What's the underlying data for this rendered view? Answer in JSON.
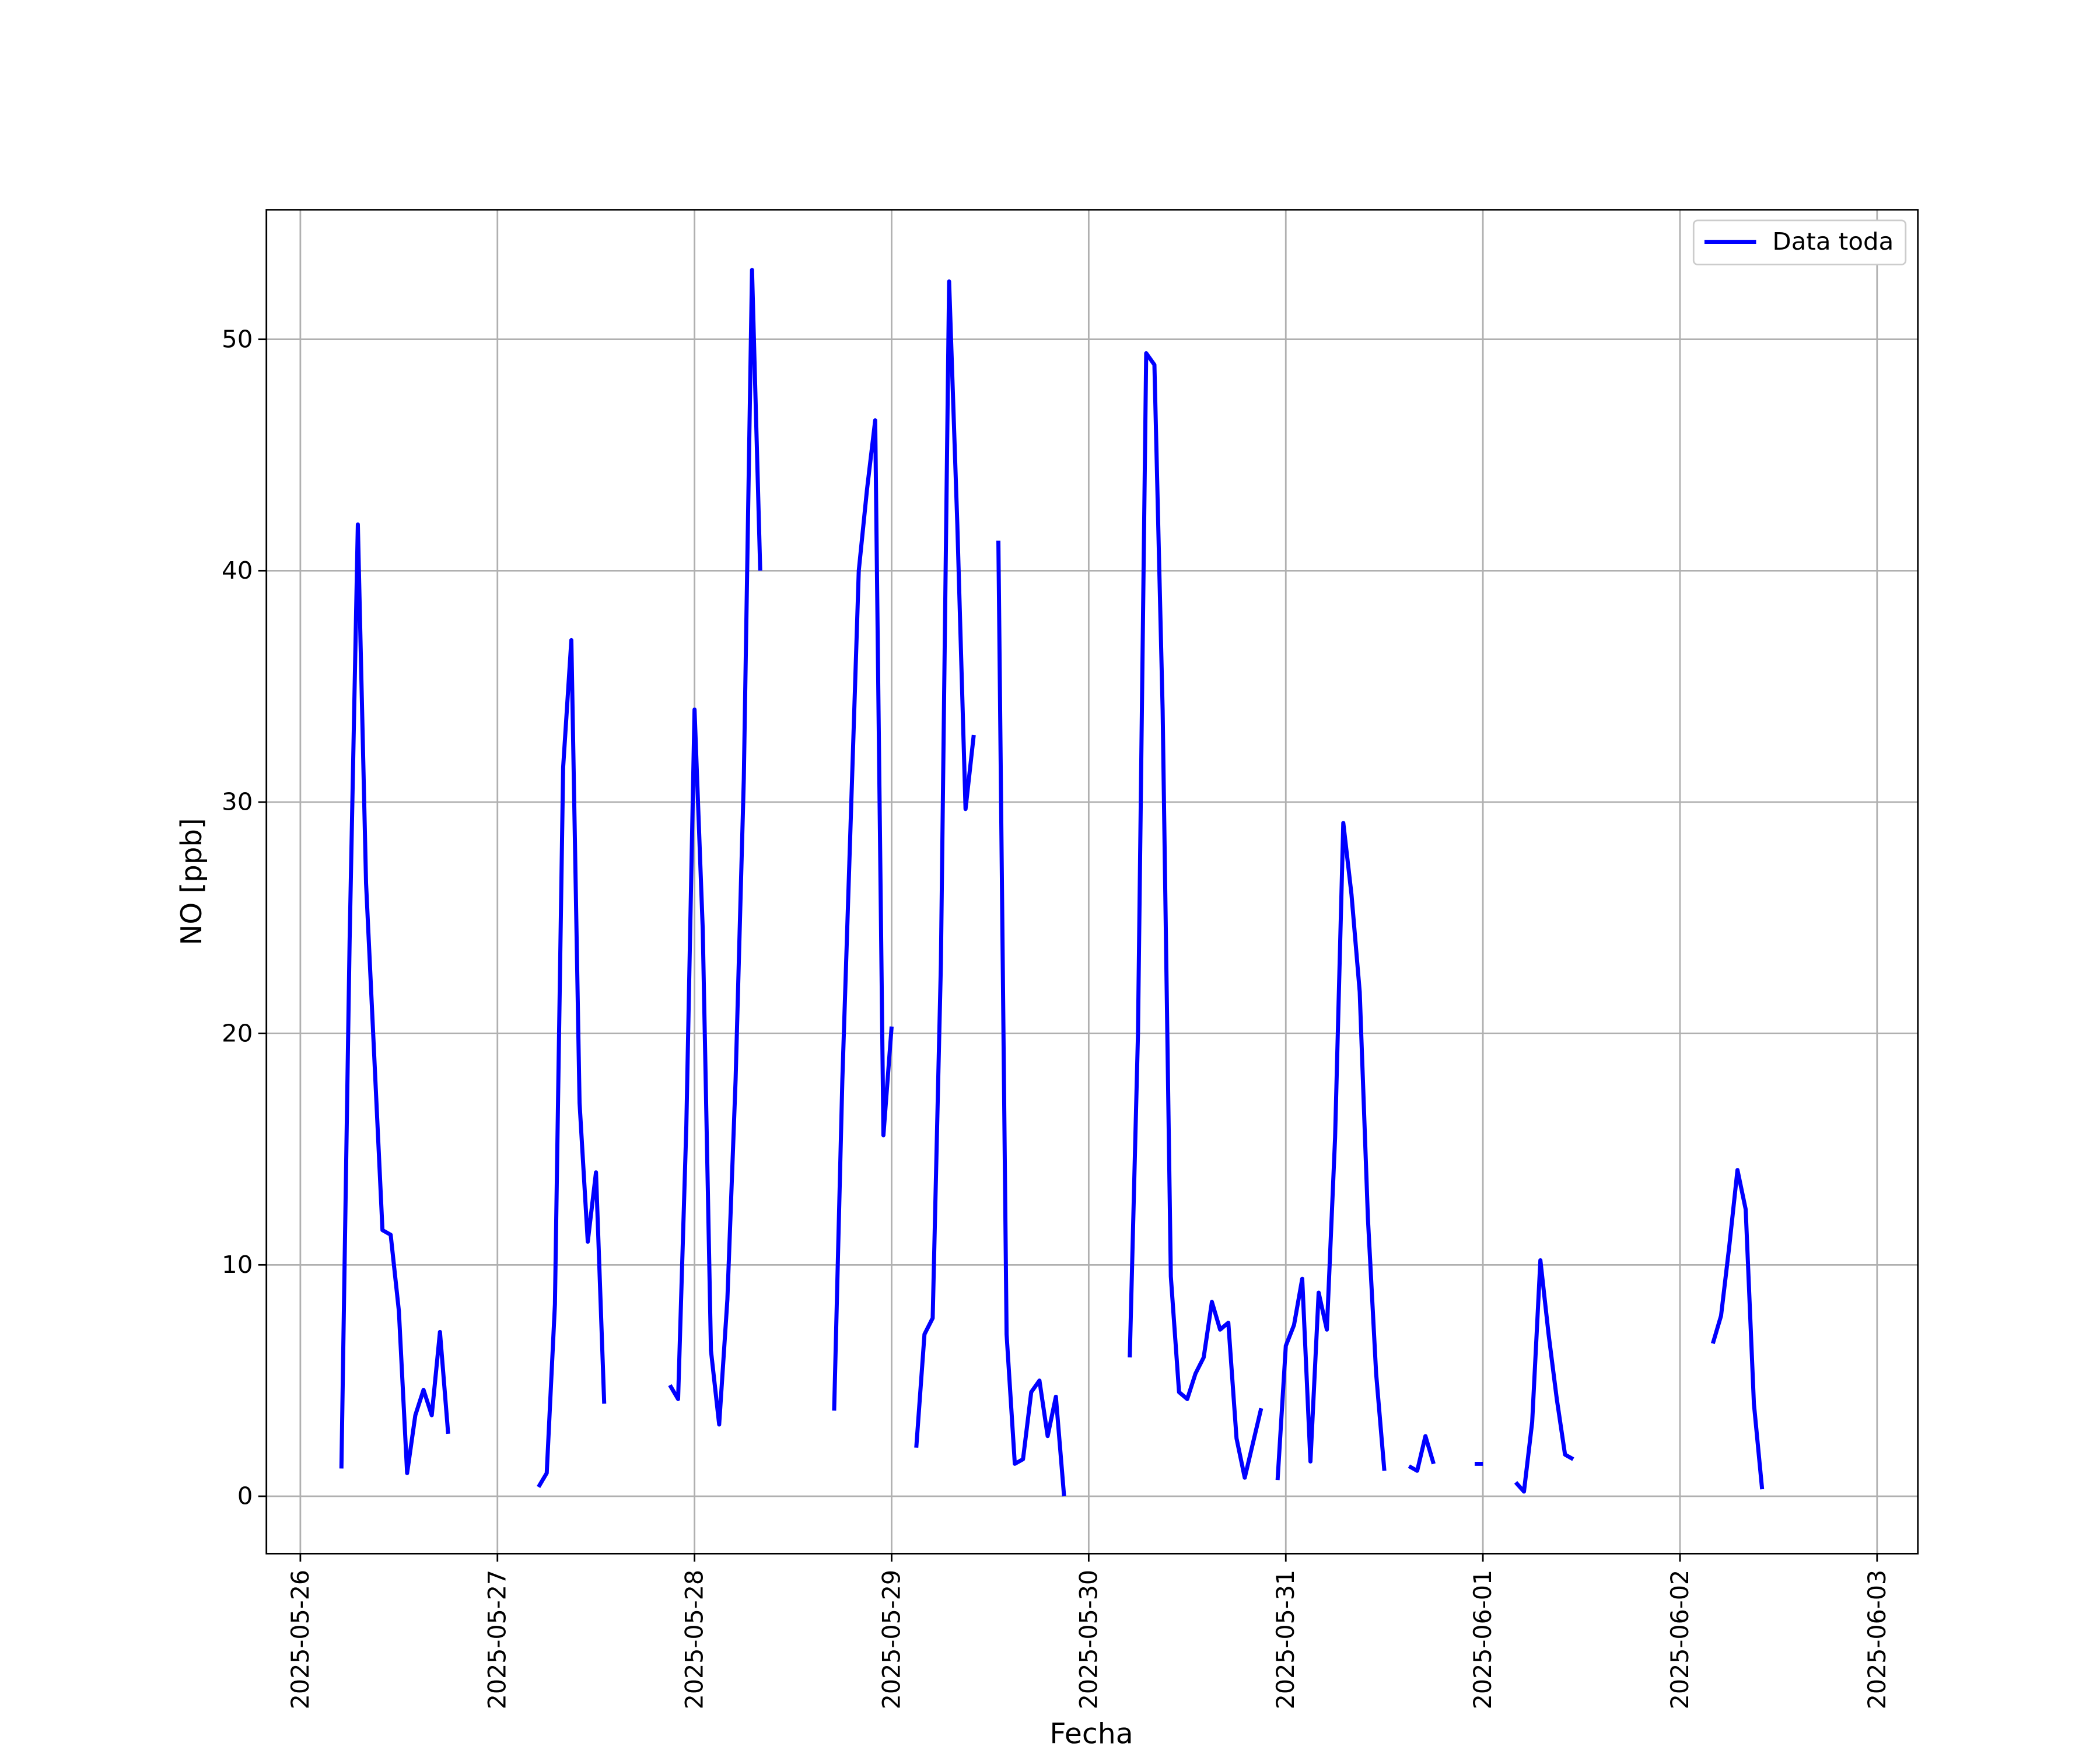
{
  "chart_data": {
    "type": "line",
    "xlabel": "Fecha",
    "ylabel": "NO [ppb]",
    "x": [
      "2025-05-26T05:00",
      "2025-05-26T06:00",
      "2025-05-26T07:00",
      "2025-05-26T08:00",
      "2025-05-26T09:00",
      "2025-05-26T10:00",
      "2025-05-26T11:00",
      "2025-05-26T12:00",
      "2025-05-26T13:00",
      "2025-05-26T14:00",
      "2025-05-26T15:00",
      "2025-05-26T16:00",
      "2025-05-26T17:00",
      "2025-05-26T18:00",
      "2025-05-26T19:00",
      "2025-05-27T05:00",
      "2025-05-27T06:00",
      "2025-05-27T07:00",
      "2025-05-27T08:00",
      "2025-05-27T09:00",
      "2025-05-27T10:00",
      "2025-05-27T11:00",
      "2025-05-27T12:00",
      "2025-05-27T13:00",
      "2025-05-27T14:00",
      "2025-05-27T21:00",
      "2025-05-27T22:00",
      "2025-05-27T23:00",
      "2025-05-28T00:00",
      "2025-05-28T01:00",
      "2025-05-28T02:00",
      "2025-05-28T03:00",
      "2025-05-28T04:00",
      "2025-05-28T05:00",
      "2025-05-28T06:00",
      "2025-05-28T07:00",
      "2025-05-28T08:00",
      "2025-05-28T09:00",
      "2025-05-28T17:00",
      "2025-05-28T18:00",
      "2025-05-28T19:00",
      "2025-05-28T20:00",
      "2025-05-28T21:00",
      "2025-05-28T22:00",
      "2025-05-28T23:00",
      "2025-05-29T00:00",
      "2025-05-29T01:00",
      "2025-05-29T03:00",
      "2025-05-29T04:00",
      "2025-05-29T05:00",
      "2025-05-29T06:00",
      "2025-05-29T07:00",
      "2025-05-29T08:00",
      "2025-05-29T09:00",
      "2025-05-29T10:00",
      "2025-05-29T11:00",
      "2025-05-29T13:00",
      "2025-05-29T14:00",
      "2025-05-29T15:00",
      "2025-05-29T16:00",
      "2025-05-29T17:00",
      "2025-05-29T18:00",
      "2025-05-29T19:00",
      "2025-05-29T20:00",
      "2025-05-29T21:00",
      "2025-05-29T22:00",
      "2025-05-30T05:00",
      "2025-05-30T06:00",
      "2025-05-30T07:00",
      "2025-05-30T08:00",
      "2025-05-30T09:00",
      "2025-05-30T10:00",
      "2025-05-30T11:00",
      "2025-05-30T12:00",
      "2025-05-30T13:00",
      "2025-05-30T14:00",
      "2025-05-30T15:00",
      "2025-05-30T16:00",
      "2025-05-30T17:00",
      "2025-05-30T18:00",
      "2025-05-30T19:00",
      "2025-05-30T20:00",
      "2025-05-30T21:00",
      "2025-05-30T22:00",
      "2025-05-30T23:00",
      "2025-05-31T00:00",
      "2025-05-31T01:00",
      "2025-05-31T02:00",
      "2025-05-31T03:00",
      "2025-05-31T04:00",
      "2025-05-31T05:00",
      "2025-05-31T06:00",
      "2025-05-31T07:00",
      "2025-05-31T08:00",
      "2025-05-31T09:00",
      "2025-05-31T10:00",
      "2025-05-31T11:00",
      "2025-05-31T12:00",
      "2025-05-31T13:00",
      "2025-05-31T15:00",
      "2025-05-31T16:00",
      "2025-05-31T17:00",
      "2025-05-31T18:00",
      "2025-05-31T19:00",
      "2025-05-31T23:00",
      "2025-06-01T00:00",
      "2025-06-01T01:00",
      "2025-06-01T04:00",
      "2025-06-01T05:00",
      "2025-06-01T06:00",
      "2025-06-01T07:00",
      "2025-06-01T08:00",
      "2025-06-01T09:00",
      "2025-06-01T10:00",
      "2025-06-01T11:00",
      "2025-06-01T12:00",
      "2025-06-02T04:00",
      "2025-06-02T05:00",
      "2025-06-02T06:00",
      "2025-06-02T07:00",
      "2025-06-02T08:00",
      "2025-06-02T09:00",
      "2025-06-02T10:00"
    ],
    "series": [
      {
        "name": "Data toda",
        "color": "#0000ff",
        "values": [
          1.2,
          24,
          42,
          26.5,
          19,
          11.5,
          11.3,
          8,
          1,
          3.5,
          4.6,
          3.5,
          7.1,
          2.7,
          null,
          0.4,
          1,
          8.3,
          31.5,
          37,
          17,
          11,
          14,
          4,
          null,
          4.8,
          4.2,
          16,
          34,
          24.5,
          6.3,
          3.1,
          8.5,
          18,
          31,
          53,
          40,
          null,
          3.7,
          18,
          29,
          40,
          43.5,
          46.5,
          15.6,
          20.3,
          null,
          2.1,
          7,
          7.7,
          23,
          52.5,
          42,
          29.7,
          32.9,
          null,
          41.3,
          7,
          1.4,
          1.6,
          4.5,
          5,
          2.6,
          4.3,
          0,
          null,
          6,
          20,
          49.4,
          48.9,
          34,
          9.5,
          4.5,
          4.2,
          5.3,
          6,
          8.4,
          7.2,
          7.5,
          2.5,
          0.8,
          2.3,
          3.8,
          null,
          0.7,
          6.5,
          7.4,
          9.4,
          1.5,
          8.8,
          7.2,
          15.5,
          29.1,
          26,
          21.8,
          12,
          5.3,
          1.1,
          null,
          1.3,
          1.1,
          2.6,
          1.4,
          null,
          1.4,
          1.4,
          null,
          0.6,
          0.2,
          3.2,
          10.2,
          7,
          4.2,
          1.8,
          1.6,
          null,
          6.6,
          7.8,
          10.8,
          14.1,
          12.4,
          4,
          0.3
        ]
      }
    ],
    "xlim": [
      "2025-05-25T19:52",
      "2025-06-03T04:58"
    ],
    "xticks": [
      "2025-05-26",
      "2025-05-27",
      "2025-05-28",
      "2025-05-29",
      "2025-05-30",
      "2025-05-31",
      "2025-06-01",
      "2025-06-02",
      "2025-06-03"
    ],
    "ylim": [
      -2.48,
      55.6
    ],
    "yticks": [
      0,
      10,
      20,
      30,
      40,
      50
    ],
    "grid": true,
    "legend": "upper right"
  }
}
